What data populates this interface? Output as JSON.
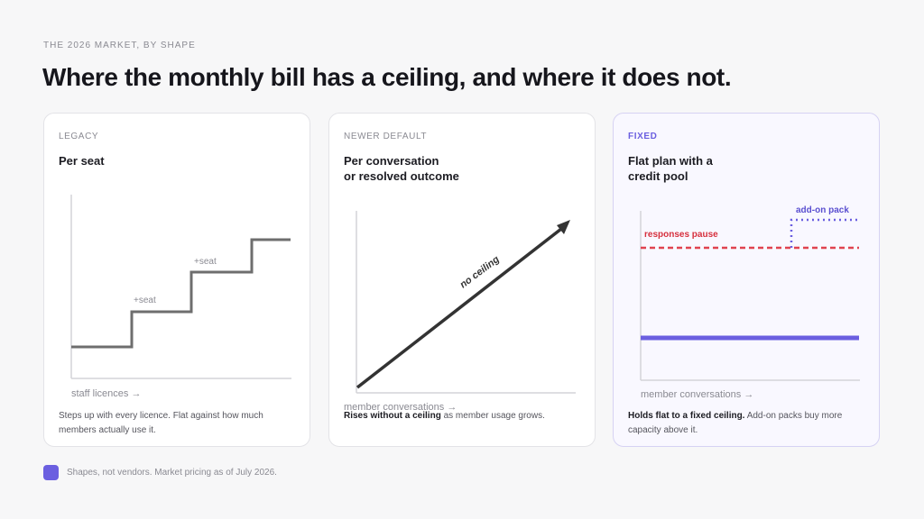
{
  "eyebrow": "THE 2026 MARKET, BY SHAPE",
  "headline": "Where the monthly bill has a ceiling, and where it does not.",
  "cards": [
    {
      "kicker": "LEGACY",
      "title": "Per seat",
      "x_label": "staff licences →",
      "annotations": [
        "+seat",
        "+seat"
      ],
      "caption_strong": "",
      "caption": "Steps up with every licence. Flat against how much members actually use it."
    },
    {
      "kicker": "NEWER DEFAULT",
      "title": "Per conversation\nor resolved outcome",
      "x_label": "member conversations →",
      "annotations": [
        "no ceiling"
      ],
      "caption_strong": "Rises without a ceiling",
      "caption": " as member usage grows."
    },
    {
      "kicker": "FIXED",
      "title": "Flat plan with a\ncredit pool",
      "x_label": "member conversations →",
      "annotations": [
        "responses pause",
        "add-on pack"
      ],
      "caption_strong": "Holds flat to a fixed ceiling.",
      "caption": " Add-on packs buy more capacity above it."
    }
  ],
  "footnote": "Shapes, not vendors. Market pricing as of July 2026.",
  "colors": {
    "accent": "#6b5fe0",
    "ceiling_red": "#e0434f",
    "step_gray": "#6e6e6e",
    "line_dark": "#333333"
  }
}
